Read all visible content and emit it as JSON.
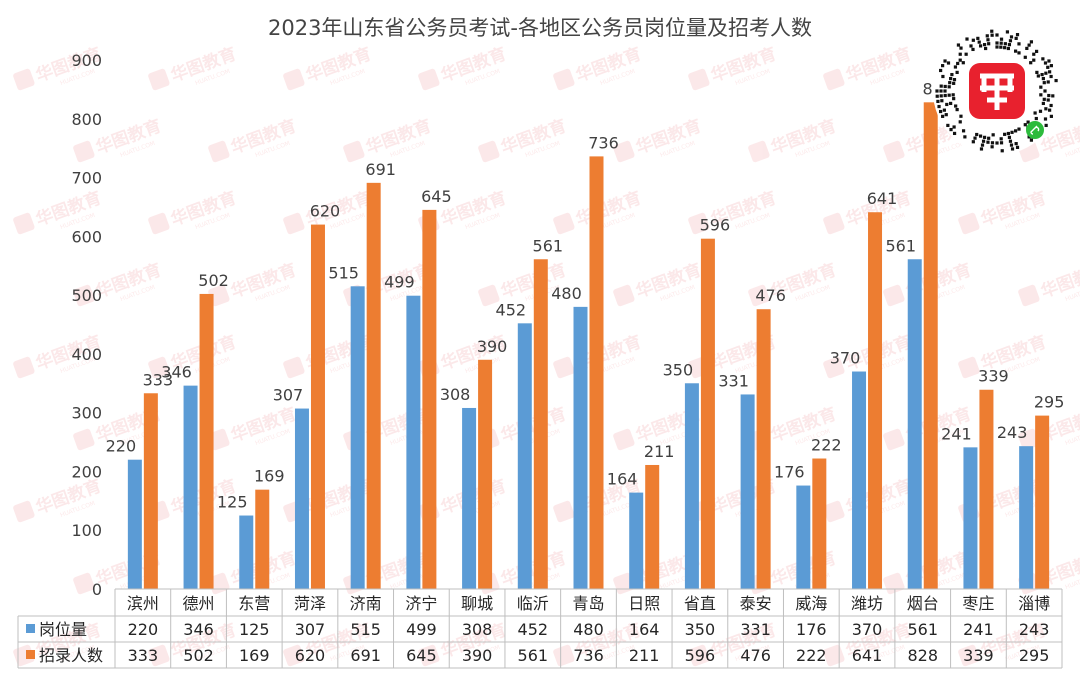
{
  "chart_data": {
    "type": "bar",
    "title": "2023年山东省公务员考试-各地区公务员岗位量及招考人数",
    "categories": [
      "滨州",
      "德州",
      "东营",
      "菏泽",
      "济南",
      "济宁",
      "聊城",
      "临沂",
      "青岛",
      "日照",
      "省直",
      "泰安",
      "威海",
      "潍坊",
      "烟台",
      "枣庄",
      "淄博"
    ],
    "series": [
      {
        "name": "岗位量",
        "color": "#5B9BD5",
        "values": [
          220,
          346,
          125,
          307,
          515,
          499,
          308,
          452,
          480,
          164,
          350,
          331,
          176,
          370,
          561,
          241,
          243
        ]
      },
      {
        "name": "招录人数",
        "color": "#ED7D31",
        "values": [
          333,
          502,
          169,
          620,
          691,
          645,
          390,
          561,
          736,
          211,
          596,
          476,
          222,
          641,
          828,
          339,
          295
        ]
      }
    ],
    "ylim": [
      0,
      900
    ],
    "yticks": [
      0,
      100,
      200,
      300,
      400,
      500,
      600,
      700,
      800,
      900
    ],
    "grid": false,
    "legend": "data-table",
    "data_labels": true
  },
  "watermark": {
    "text": "华图教育",
    "sub": "HUATU.COM",
    "color": "#e8545a"
  },
  "qr_code": {
    "logo": "HT-logo-icon",
    "brand_color": "#e8212e"
  }
}
